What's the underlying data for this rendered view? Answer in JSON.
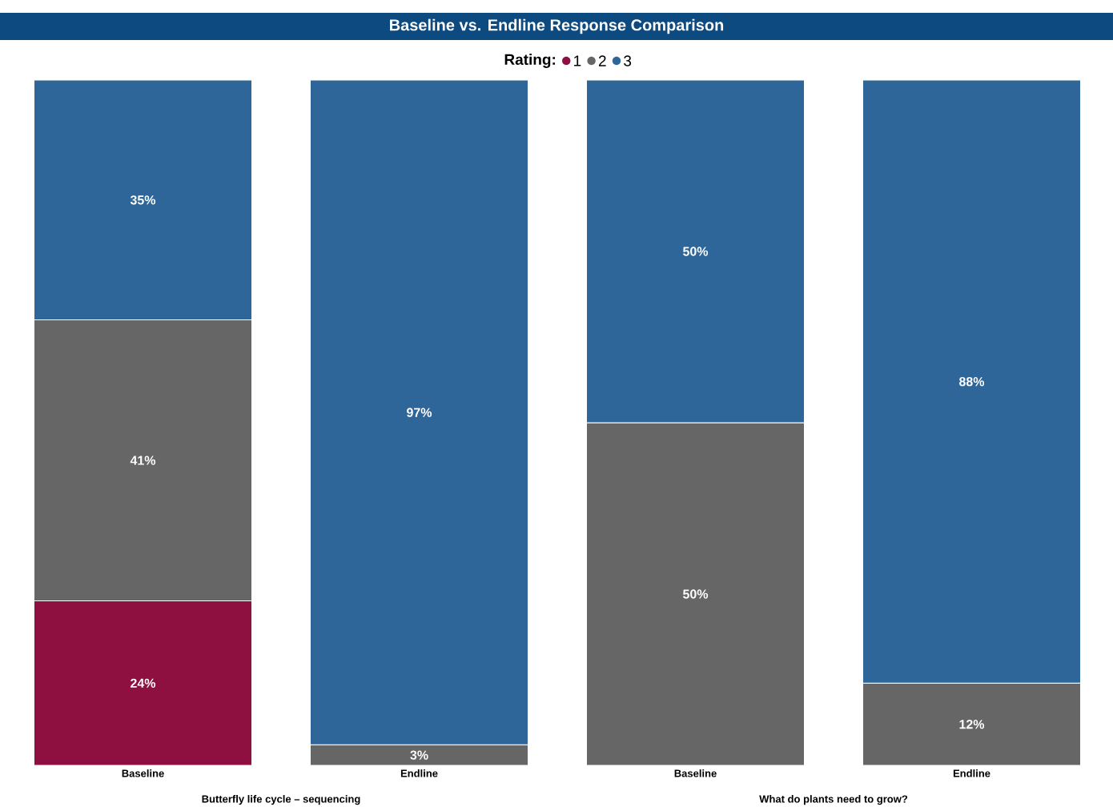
{
  "chart_data": {
    "type": "bar",
    "title": "Baseline vs. Endline Response Comparison",
    "legend_title": "Rating:",
    "legend": "top",
    "stacked": true,
    "categories": [
      "Baseline",
      "Endline",
      "Baseline",
      "Endline"
    ],
    "ylim": [
      0,
      100
    ],
    "annotations": [
      "Butterfly life cycle – sequencing",
      "What do plants need to grow?"
    ],
    "series": [
      {
        "name": "1",
        "color": "#8e1040",
        "values": [
          24,
          null,
          null,
          null
        ],
        "value_labels": [
          "24%",
          null,
          null,
          null
        ]
      },
      {
        "name": "2",
        "color": "#666666",
        "values": [
          41,
          3,
          50,
          12
        ],
        "value_labels": [
          "41%",
          "3%",
          "50%",
          "12%"
        ]
      },
      {
        "name": "3",
        "color": "#2e6699",
        "values": [
          35,
          97,
          50,
          88
        ],
        "value_labels": [
          "35%",
          "97%",
          "50%",
          "88%"
        ]
      }
    ]
  }
}
